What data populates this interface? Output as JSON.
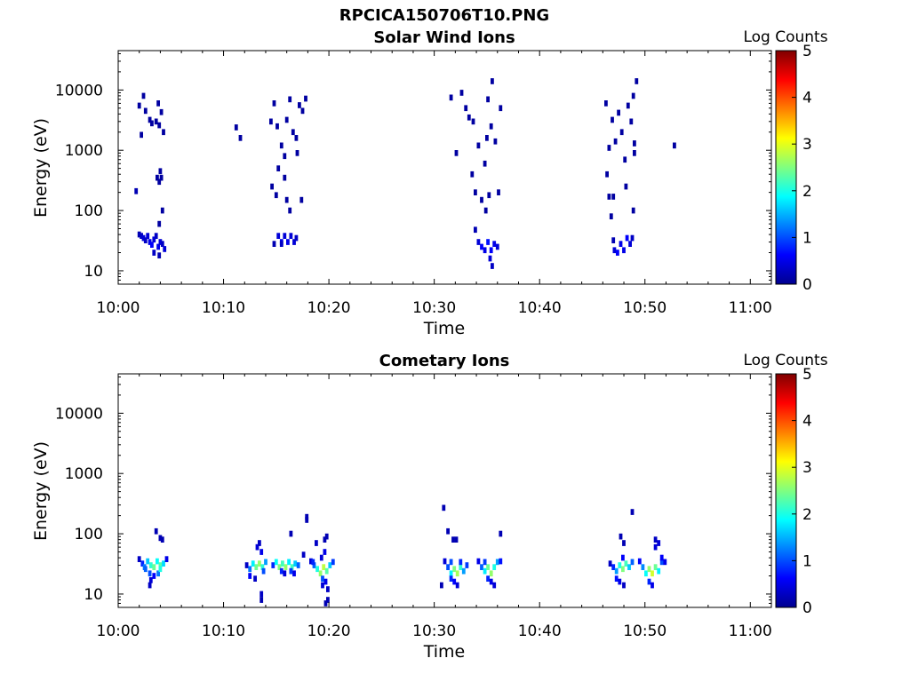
{
  "figure_title": "RPCICA150706T10.PNG",
  "chart_data": [
    {
      "type": "heatmap",
      "title": "Solar Wind Ions",
      "xlabel": "Time",
      "ylabel": "Energy (eV)",
      "x_ticks": [
        "10:00",
        "10:10",
        "10:20",
        "10:30",
        "10:40",
        "10:50",
        "11:00"
      ],
      "xlim": [
        "10:00",
        "11:02"
      ],
      "y_scale": "log",
      "y_ticks": [
        10,
        100,
        1000,
        10000
      ],
      "ylim": [
        6,
        45000
      ],
      "colorbar": {
        "label": "Log Counts",
        "range": [
          0,
          5
        ],
        "ticks": [
          0,
          1,
          2,
          3,
          4,
          5
        ],
        "colormap": "jet"
      },
      "grid": false,
      "cells": [
        [
          2.0,
          40,
          0.2
        ],
        [
          2.2,
          38,
          0.3
        ],
        [
          2.4,
          35,
          0.4
        ],
        [
          2.6,
          32,
          0.3
        ],
        [
          2.8,
          38,
          0.4
        ],
        [
          3.0,
          30,
          0.5
        ],
        [
          3.2,
          27,
          0.6
        ],
        [
          3.4,
          33,
          0.4
        ],
        [
          3.6,
          38,
          0.3
        ],
        [
          3.8,
          25,
          0.5
        ],
        [
          4.0,
          30,
          0.4
        ],
        [
          4.2,
          28,
          0.3
        ],
        [
          4.4,
          23,
          0.4
        ],
        [
          3.4,
          20,
          0.3
        ],
        [
          3.9,
          18,
          0.2
        ],
        [
          1.7,
          210,
          0.2
        ],
        [
          2.0,
          5500,
          0.1
        ],
        [
          2.2,
          1800,
          0.1
        ],
        [
          2.4,
          8000,
          0.1
        ],
        [
          2.6,
          4500,
          0.1
        ],
        [
          3.0,
          3200,
          0.1
        ],
        [
          3.2,
          2800,
          0.1
        ],
        [
          3.6,
          3000,
          0.1
        ],
        [
          3.8,
          6000,
          0.1
        ],
        [
          4.1,
          4300,
          0.1
        ],
        [
          4.0,
          450,
          0.1
        ],
        [
          4.1,
          350,
          0.1
        ],
        [
          3.7,
          350,
          0.1
        ],
        [
          3.9,
          300,
          0.1
        ],
        [
          4.2,
          100,
          0.1
        ],
        [
          3.9,
          60,
          0.1
        ],
        [
          4.3,
          2000,
          0.1
        ],
        [
          3.9,
          2600,
          0.1
        ],
        [
          11.2,
          2400,
          0.1
        ],
        [
          11.6,
          1600,
          0.1
        ],
        [
          14.8,
          28,
          0.2
        ],
        [
          15.2,
          38,
          0.4
        ],
        [
          15.5,
          30,
          0.5
        ],
        [
          15.8,
          38,
          0.4
        ],
        [
          16.1,
          30,
          0.5
        ],
        [
          16.4,
          38,
          0.4
        ],
        [
          16.7,
          30,
          0.4
        ],
        [
          16.9,
          35,
          0.3
        ],
        [
          15.5,
          28,
          0.3
        ],
        [
          14.5,
          3000,
          0.1
        ],
        [
          14.8,
          6000,
          0.1
        ],
        [
          15.1,
          2500,
          0.1
        ],
        [
          15.5,
          1200,
          0.1
        ],
        [
          15.8,
          800,
          0.1
        ],
        [
          16.0,
          3200,
          0.1
        ],
        [
          16.3,
          7000,
          0.1
        ],
        [
          16.6,
          2000,
          0.1
        ],
        [
          16.9,
          1600,
          0.1
        ],
        [
          17.2,
          5600,
          0.1
        ],
        [
          17.5,
          4500,
          0.1
        ],
        [
          17.8,
          7200,
          0.1
        ],
        [
          14.6,
          250,
          0.1
        ],
        [
          15.0,
          180,
          0.1
        ],
        [
          15.8,
          350,
          0.1
        ],
        [
          16.3,
          100,
          0.1
        ],
        [
          16.0,
          150,
          0.1
        ],
        [
          17.0,
          900,
          0.1
        ],
        [
          17.4,
          150,
          0.1
        ],
        [
          15.2,
          500,
          0.1
        ],
        [
          33.9,
          48,
          0.2
        ],
        [
          34.2,
          30,
          0.4
        ],
        [
          34.5,
          25,
          0.6
        ],
        [
          34.8,
          22,
          0.5
        ],
        [
          35.1,
          30,
          0.7
        ],
        [
          35.4,
          22,
          0.6
        ],
        [
          35.7,
          28,
          0.5
        ],
        [
          36.0,
          25,
          0.4
        ],
        [
          35.3,
          16,
          0.4
        ],
        [
          35.5,
          12,
          0.3
        ],
        [
          31.6,
          7500,
          0.1
        ],
        [
          32.1,
          900,
          0.1
        ],
        [
          32.6,
          9000,
          0.1
        ],
        [
          33.0,
          5000,
          0.1
        ],
        [
          33.3,
          3500,
          0.1
        ],
        [
          33.6,
          400,
          0.1
        ],
        [
          33.9,
          200,
          0.1
        ],
        [
          34.2,
          1200,
          0.1
        ],
        [
          34.5,
          150,
          0.1
        ],
        [
          34.8,
          600,
          0.1
        ],
        [
          35.1,
          7000,
          0.1
        ],
        [
          35.4,
          2500,
          0.1
        ],
        [
          35.5,
          14000,
          0.1
        ],
        [
          35.8,
          1400,
          0.1
        ],
        [
          36.1,
          200,
          0.1
        ],
        [
          35.2,
          180,
          0.1
        ],
        [
          34.9,
          100,
          0.1
        ],
        [
          33.7,
          3000,
          0.1
        ],
        [
          36.3,
          5000,
          0.1
        ],
        [
          35.0,
          1600,
          0.1
        ],
        [
          47.1,
          22,
          0.4
        ],
        [
          47.4,
          20,
          0.6
        ],
        [
          47.7,
          28,
          0.5
        ],
        [
          48.0,
          22,
          0.5
        ],
        [
          48.3,
          35,
          0.6
        ],
        [
          48.6,
          28,
          0.4
        ],
        [
          48.8,
          35,
          0.3
        ],
        [
          47.0,
          32,
          0.2
        ],
        [
          46.3,
          6000,
          0.1
        ],
        [
          46.6,
          1100,
          0.1
        ],
        [
          46.9,
          3200,
          0.1
        ],
        [
          47.2,
          1400,
          0.1
        ],
        [
          47.5,
          4200,
          0.1
        ],
        [
          47.8,
          2000,
          0.1
        ],
        [
          48.1,
          700,
          0.1
        ],
        [
          48.4,
          5500,
          0.1
        ],
        [
          48.7,
          3000,
          0.1
        ],
        [
          49.0,
          1300,
          0.1
        ],
        [
          49.2,
          14000,
          0.1
        ],
        [
          48.9,
          8000,
          0.1
        ],
        [
          46.4,
          400,
          0.1
        ],
        [
          46.6,
          170,
          0.1
        ],
        [
          47.0,
          170,
          0.1
        ],
        [
          46.8,
          80,
          0.1
        ],
        [
          48.2,
          250,
          0.1
        ],
        [
          48.9,
          100,
          0.1
        ],
        [
          52.8,
          1200,
          0.1
        ],
        [
          49.0,
          900,
          0.1
        ]
      ]
    },
    {
      "type": "heatmap",
      "title": "Cometary Ions",
      "xlabel": "Time",
      "ylabel": "Energy (eV)",
      "x_ticks": [
        "10:00",
        "10:10",
        "10:20",
        "10:30",
        "10:40",
        "10:50",
        "11:00"
      ],
      "xlim": [
        "10:00",
        "11:02"
      ],
      "y_scale": "log",
      "y_ticks": [
        10,
        100,
        1000,
        10000
      ],
      "ylim": [
        6,
        45000
      ],
      "colorbar": {
        "label": "Log Counts",
        "range": [
          0,
          5
        ],
        "ticks": [
          0,
          1,
          2,
          3,
          4,
          5
        ],
        "colormap": "jet"
      },
      "grid": false,
      "cells": [
        [
          2.0,
          38,
          0.3
        ],
        [
          2.3,
          32,
          0.8
        ],
        [
          2.5,
          28,
          1.2
        ],
        [
          2.8,
          35,
          1.6
        ],
        [
          3.1,
          30,
          2.1
        ],
        [
          3.4,
          28,
          2.4
        ],
        [
          3.7,
          35,
          1.9
        ],
        [
          4.0,
          30,
          2.3
        ],
        [
          4.3,
          32,
          1.7
        ],
        [
          4.6,
          38,
          0.5
        ],
        [
          3.0,
          22,
          1.0
        ],
        [
          3.4,
          20,
          0.6
        ],
        [
          3.1,
          17,
          0.4
        ],
        [
          3.0,
          14,
          0.3
        ],
        [
          3.8,
          22,
          1.2
        ],
        [
          3.6,
          110,
          0.2
        ],
        [
          4.0,
          85,
          0.2
        ],
        [
          4.2,
          80,
          0.2
        ],
        [
          4.0,
          26,
          2.0
        ],
        [
          2.6,
          26,
          1.1
        ],
        [
          12.2,
          30,
          0.3
        ],
        [
          12.5,
          26,
          1.2
        ],
        [
          12.8,
          32,
          1.8
        ],
        [
          13.1,
          28,
          2.4
        ],
        [
          13.4,
          32,
          2.6
        ],
        [
          13.7,
          28,
          2.1
        ],
        [
          14.0,
          34,
          1.4
        ],
        [
          13.2,
          60,
          0.4
        ],
        [
          13.4,
          70,
          0.3
        ],
        [
          13.6,
          50,
          0.5
        ],
        [
          12.5,
          20,
          0.6
        ],
        [
          13.0,
          18,
          0.3
        ],
        [
          13.6,
          10,
          0.3
        ],
        [
          13.6,
          8,
          0.2
        ],
        [
          13.8,
          24,
          1.0
        ],
        [
          14.7,
          30,
          0.8
        ],
        [
          15.0,
          34,
          1.9
        ],
        [
          15.3,
          28,
          2.5
        ],
        [
          15.6,
          32,
          2.2
        ],
        [
          15.9,
          28,
          2.6
        ],
        [
          16.2,
          34,
          1.8
        ],
        [
          16.5,
          28,
          2.2
        ],
        [
          16.8,
          32,
          1.6
        ],
        [
          17.1,
          30,
          1.1
        ],
        [
          15.5,
          24,
          0.8
        ],
        [
          16.4,
          24,
          0.9
        ],
        [
          16.7,
          22,
          0.5
        ],
        [
          15.8,
          22,
          0.4
        ],
        [
          16.4,
          100,
          0.2
        ],
        [
          17.6,
          45,
          0.3
        ],
        [
          17.9,
          190,
          0.2
        ],
        [
          17.9,
          170,
          0.2
        ],
        [
          18.3,
          35,
          0.4
        ],
        [
          18.6,
          30,
          1.1
        ],
        [
          18.9,
          26,
          2.0
        ],
        [
          19.2,
          22,
          2.6
        ],
        [
          19.5,
          28,
          2.8
        ],
        [
          19.8,
          24,
          2.3
        ],
        [
          20.1,
          30,
          1.6
        ],
        [
          20.4,
          34,
          0.9
        ],
        [
          19.4,
          18,
          1.0
        ],
        [
          19.7,
          16,
          0.5
        ],
        [
          19.4,
          14,
          0.4
        ],
        [
          19.9,
          12,
          0.3
        ],
        [
          19.9,
          8,
          0.2
        ],
        [
          19.7,
          7,
          0.2
        ],
        [
          19.6,
          80,
          0.2
        ],
        [
          19.8,
          90,
          0.2
        ],
        [
          18.8,
          70,
          0.3
        ],
        [
          19.6,
          50,
          0.5
        ],
        [
          19.3,
          40,
          0.4
        ],
        [
          18.5,
          34,
          0.8
        ],
        [
          30.9,
          270,
          0.2
        ],
        [
          31.3,
          110,
          0.2
        ],
        [
          31.8,
          80,
          0.2
        ],
        [
          32.1,
          80,
          0.2
        ],
        [
          31.0,
          35,
          0.4
        ],
        [
          31.3,
          28,
          1.0
        ],
        [
          31.6,
          22,
          1.8
        ],
        [
          31.9,
          26,
          2.5
        ],
        [
          32.2,
          22,
          2.7
        ],
        [
          32.5,
          28,
          2.1
        ],
        [
          32.8,
          24,
          1.4
        ],
        [
          33.1,
          30,
          0.9
        ],
        [
          31.6,
          18,
          0.8
        ],
        [
          31.9,
          16,
          0.6
        ],
        [
          32.2,
          14,
          0.4
        ],
        [
          30.7,
          14,
          0.2
        ],
        [
          32.5,
          34,
          0.8
        ],
        [
          31.6,
          34,
          1.0
        ],
        [
          34.2,
          35,
          0.5
        ],
        [
          34.5,
          28,
          1.1
        ],
        [
          34.8,
          24,
          1.8
        ],
        [
          35.1,
          28,
          2.4
        ],
        [
          35.4,
          22,
          2.6
        ],
        [
          35.7,
          28,
          2.0
        ],
        [
          36.0,
          34,
          1.4
        ],
        [
          36.3,
          35,
          0.7
        ],
        [
          35.1,
          18,
          0.8
        ],
        [
          35.4,
          16,
          0.5
        ],
        [
          35.7,
          14,
          0.4
        ],
        [
          36.3,
          100,
          0.2
        ],
        [
          34.8,
          34,
          0.9
        ],
        [
          46.7,
          32,
          0.3
        ],
        [
          47.0,
          28,
          0.8
        ],
        [
          47.3,
          24,
          1.4
        ],
        [
          47.6,
          30,
          2.0
        ],
        [
          47.9,
          26,
          2.5
        ],
        [
          48.2,
          32,
          2.2
        ],
        [
          48.5,
          28,
          1.6
        ],
        [
          48.8,
          34,
          1.1
        ],
        [
          47.3,
          18,
          0.7
        ],
        [
          47.6,
          16,
          0.5
        ],
        [
          48.0,
          14,
          0.3
        ],
        [
          47.7,
          90,
          0.2
        ],
        [
          48.0,
          70,
          0.2
        ],
        [
          48.8,
          230,
          0.2
        ],
        [
          47.9,
          40,
          0.6
        ],
        [
          49.5,
          35,
          0.6
        ],
        [
          49.8,
          28,
          1.3
        ],
        [
          50.1,
          22,
          1.9
        ],
        [
          50.4,
          26,
          2.6
        ],
        [
          50.7,
          22,
          2.9
        ],
        [
          51.0,
          28,
          2.4
        ],
        [
          51.3,
          24,
          1.8
        ],
        [
          51.6,
          34,
          1.0
        ],
        [
          50.4,
          16,
          0.8
        ],
        [
          50.7,
          14,
          0.5
        ],
        [
          51.0,
          60,
          0.4
        ],
        [
          51.0,
          80,
          0.3
        ],
        [
          51.3,
          70,
          0.4
        ],
        [
          51.6,
          40,
          0.6
        ],
        [
          51.9,
          34,
          0.5
        ]
      ]
    }
  ]
}
